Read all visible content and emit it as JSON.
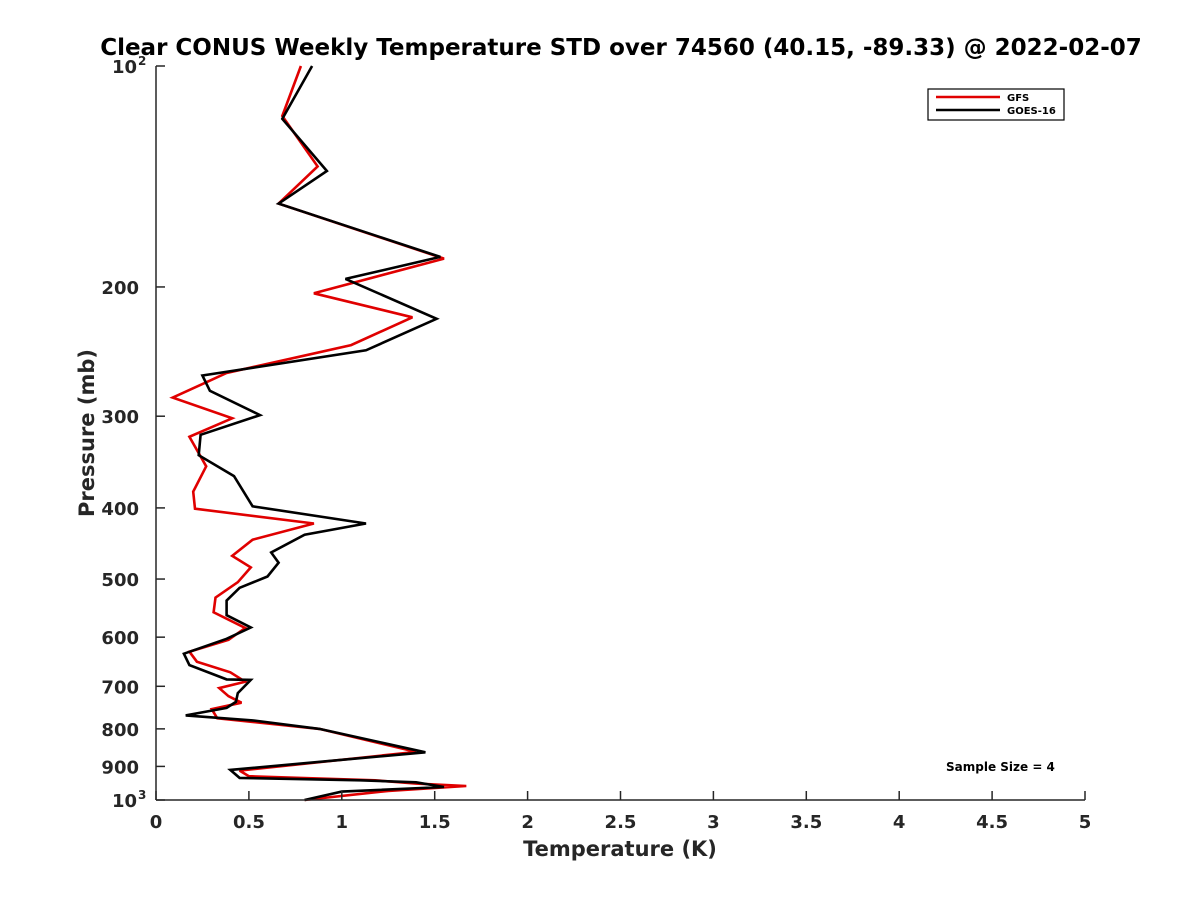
{
  "chart_data": {
    "type": "line",
    "title": "Clear CONUS Weekly Temperature STD over 74560 (40.15, -89.33) @ 2022-02-07",
    "xlabel": "Temperature (K)",
    "ylabel": "Pressure (mb)",
    "xlim": [
      0,
      5
    ],
    "ylim": [
      100,
      1000
    ],
    "y_scale": "log",
    "y_reversed": true,
    "grid": false,
    "legend_position": "top-right",
    "annotation": "Sample Size = 4",
    "x_ticks": [
      {
        "value": 0,
        "label": "0"
      },
      {
        "value": 0.5,
        "label": "0.5"
      },
      {
        "value": 1,
        "label": "1"
      },
      {
        "value": 1.5,
        "label": "1.5"
      },
      {
        "value": 2,
        "label": "2"
      },
      {
        "value": 2.5,
        "label": "2.5"
      },
      {
        "value": 3,
        "label": "3"
      },
      {
        "value": 3.5,
        "label": "3.5"
      },
      {
        "value": 4,
        "label": "4"
      },
      {
        "value": 4.5,
        "label": "4.5"
      },
      {
        "value": 5,
        "label": "5"
      }
    ],
    "y_ticks": [
      {
        "value": 100,
        "label": "10",
        "exp": "2"
      },
      {
        "value": 200,
        "label": "200"
      },
      {
        "value": 300,
        "label": "300"
      },
      {
        "value": 400,
        "label": "400"
      },
      {
        "value": 500,
        "label": "500"
      },
      {
        "value": 600,
        "label": "600"
      },
      {
        "value": 700,
        "label": "700"
      },
      {
        "value": 800,
        "label": "800"
      },
      {
        "value": 900,
        "label": "900"
      },
      {
        "value": 1000,
        "label": "10",
        "exp": "3"
      }
    ],
    "series": [
      {
        "name": "GFS",
        "color": "#e00000",
        "points": [
          [
            0.78,
            100
          ],
          [
            0.68,
            117
          ],
          [
            0.87,
            137
          ],
          [
            0.66,
            154
          ],
          [
            1.55,
            183
          ],
          [
            0.85,
            204
          ],
          [
            1.38,
            220
          ],
          [
            1.05,
            240
          ],
          [
            0.38,
            262
          ],
          [
            0.09,
            283
          ],
          [
            0.41,
            302
          ],
          [
            0.18,
            320
          ],
          [
            0.27,
            351
          ],
          [
            0.2,
            380
          ],
          [
            0.21,
            401
          ],
          [
            0.85,
            420
          ],
          [
            0.52,
            442
          ],
          [
            0.41,
            465
          ],
          [
            0.51,
            482
          ],
          [
            0.44,
            505
          ],
          [
            0.32,
            530
          ],
          [
            0.31,
            555
          ],
          [
            0.48,
            583
          ],
          [
            0.39,
            605
          ],
          [
            0.18,
            628
          ],
          [
            0.22,
            648
          ],
          [
            0.4,
            670
          ],
          [
            0.48,
            690
          ],
          [
            0.34,
            704
          ],
          [
            0.39,
            722
          ],
          [
            0.46,
            737
          ],
          [
            0.3,
            752
          ],
          [
            0.33,
            774
          ],
          [
            0.88,
            800
          ],
          [
            1.4,
            860
          ],
          [
            0.45,
            912
          ],
          [
            0.5,
            928
          ],
          [
            1.18,
            940
          ],
          [
            1.4,
            950
          ],
          [
            1.67,
            957
          ],
          [
            1.25,
            972
          ],
          [
            0.8,
            1000
          ]
        ]
      },
      {
        "name": "GOES-16",
        "color": "#000000",
        "points": [
          [
            0.84,
            100
          ],
          [
            0.68,
            118
          ],
          [
            0.92,
            139
          ],
          [
            0.66,
            154
          ],
          [
            1.53,
            182
          ],
          [
            1.02,
            195
          ],
          [
            1.51,
            221
          ],
          [
            1.13,
            244
          ],
          [
            0.25,
            264
          ],
          [
            0.29,
            277
          ],
          [
            0.56,
            299
          ],
          [
            0.24,
            318
          ],
          [
            0.23,
            339
          ],
          [
            0.42,
            362
          ],
          [
            0.52,
            398
          ],
          [
            1.13,
            420
          ],
          [
            0.8,
            435
          ],
          [
            0.62,
            460
          ],
          [
            0.66,
            475
          ],
          [
            0.6,
            496
          ],
          [
            0.45,
            514
          ],
          [
            0.38,
            535
          ],
          [
            0.38,
            560
          ],
          [
            0.51,
            582
          ],
          [
            0.38,
            603
          ],
          [
            0.15,
            632
          ],
          [
            0.18,
            655
          ],
          [
            0.38,
            685
          ],
          [
            0.51,
            686
          ],
          [
            0.44,
            715
          ],
          [
            0.43,
            735
          ],
          [
            0.38,
            749
          ],
          [
            0.16,
            767
          ],
          [
            0.52,
            779
          ],
          [
            0.88,
            800
          ],
          [
            1.45,
            861
          ],
          [
            0.4,
            910
          ],
          [
            0.45,
            933
          ],
          [
            1.1,
            940
          ],
          [
            1.4,
            946
          ],
          [
            1.55,
            960
          ],
          [
            1.0,
            974
          ],
          [
            0.8,
            1000
          ]
        ]
      }
    ]
  }
}
